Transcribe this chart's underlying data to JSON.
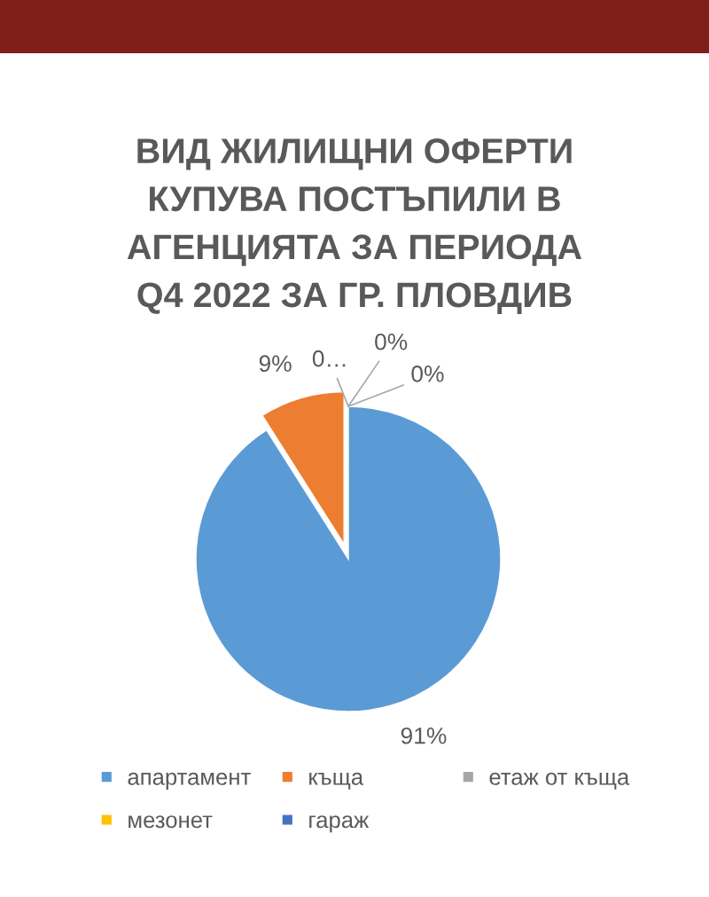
{
  "chart_data": {
    "type": "pie",
    "title": "ВИД ЖИЛИЩНИ ОФЕРТИ\nКУПУВА ПОСТЪПИЛИ В\nАГЕНЦИЯТА ЗА ПЕРИОДА\nQ4 2022 ЗА ГР. ПЛОВДИВ",
    "categories": [
      "апартамент",
      "къща",
      "етаж от къща",
      "мезонет",
      "гараж"
    ],
    "values": [
      91,
      9,
      0,
      0,
      0
    ],
    "colors": [
      "#5b9bd5",
      "#ed7d31",
      "#a5a5a5",
      "#ffc000",
      "#4472c4"
    ],
    "value_labels": [
      "91%",
      "9%",
      "0…",
      "0%",
      "0%"
    ],
    "legend": "bottom"
  }
}
